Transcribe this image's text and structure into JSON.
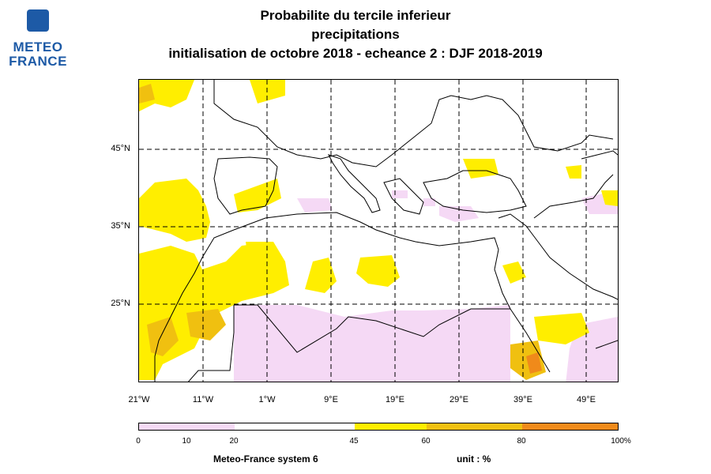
{
  "logo": {
    "line1": "METEO",
    "line2": "FRANCE"
  },
  "title": {
    "line1": "Probabilite du tercile inferieur",
    "line2": "precipitations",
    "line3": "initialisation de octobre 2018  -  echeance 2 : DJF 2018-2019"
  },
  "map": {
    "lat_labels": [
      "45°N",
      "35°N",
      "25°N"
    ],
    "lon_labels": [
      "21°W",
      "11°W",
      "1°W",
      "9°E",
      "19°E",
      "29°E",
      "39°E",
      "49°E"
    ],
    "colors": {
      "pink": "#f5d9f5",
      "yellow": "#ffee00",
      "gold": "#f0c010",
      "orange": "#f08a1a",
      "coast": "#000000"
    }
  },
  "colorbar": {
    "ticks": [
      "0",
      "10",
      "20",
      "45",
      "60",
      "80",
      "100%"
    ],
    "colors": [
      "#f5d9f5",
      "#f5d9f5",
      "#ffffff",
      "#ffee00",
      "#f0c010",
      "#f08a1a"
    ]
  },
  "footer": {
    "left": "Meteo-France system 6",
    "right": "unit : %"
  }
}
